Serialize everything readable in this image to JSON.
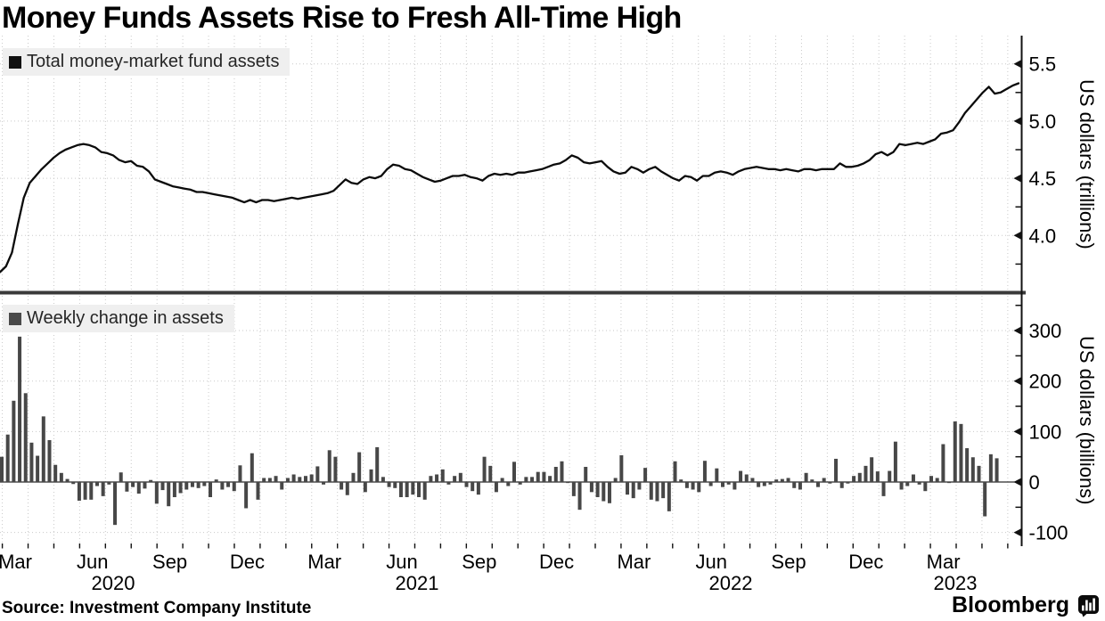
{
  "title": "Money Funds Assets Rise to Fresh All-Time High",
  "source": "Source: Investment Company Institute",
  "branding": {
    "name": "Bloomberg",
    "icon": "bloomberg-terminal-icon"
  },
  "colors": {
    "line": "#0b0b0b",
    "bar": "#474747",
    "grid": "#c9c9c9",
    "divider": "#3a3a3a",
    "axis": "#111111",
    "zero_line": "#2a2a2a",
    "legend_bg": "#efefef",
    "legend_square_top": "#111111",
    "legend_square_bottom": "#4a4a4a",
    "text": "#000000"
  },
  "x_axis": {
    "month_labels": [
      "Mar",
      "Jun",
      "Sep",
      "Dec",
      "Mar",
      "Jun",
      "Sep",
      "Dec",
      "Mar",
      "Jun",
      "Sep",
      "Dec",
      "Mar"
    ],
    "year_labels": [
      "2020",
      "2021",
      "2022",
      "2023"
    ],
    "range": "Feb 2020 - May 2023",
    "frequency": "weekly"
  },
  "chart_data": [
    {
      "type": "line",
      "legend": "Total money-market fund assets",
      "ylabel": "US dollars (trillions)",
      "unit": "USD trillions",
      "ylim": [
        3.51,
        5.71
      ],
      "yticks": [
        5.5,
        5.0,
        4.5,
        4.0
      ],
      "ytick_labels": [
        "5.5",
        "5.0",
        "4.5",
        "4.0"
      ],
      "minor_ticks": [
        5.75,
        5.25,
        4.75,
        4.25,
        3.75
      ],
      "grid": true,
      "legend_position": "top-left",
      "values": [
        3.68,
        3.73,
        3.85,
        4.1,
        4.33,
        4.46,
        4.52,
        4.58,
        4.63,
        4.68,
        4.72,
        4.75,
        4.77,
        4.79,
        4.8,
        4.79,
        4.77,
        4.73,
        4.72,
        4.7,
        4.66,
        4.64,
        4.65,
        4.61,
        4.6,
        4.56,
        4.49,
        4.47,
        4.45,
        4.43,
        4.42,
        4.41,
        4.4,
        4.38,
        4.38,
        4.37,
        4.36,
        4.35,
        4.34,
        4.33,
        4.31,
        4.29,
        4.31,
        4.29,
        4.31,
        4.31,
        4.3,
        4.31,
        4.32,
        4.33,
        4.32,
        4.33,
        4.34,
        4.35,
        4.36,
        4.37,
        4.39,
        4.44,
        4.49,
        4.46,
        4.45,
        4.49,
        4.51,
        4.5,
        4.52,
        4.58,
        4.62,
        4.61,
        4.58,
        4.57,
        4.54,
        4.51,
        4.49,
        4.47,
        4.48,
        4.5,
        4.52,
        4.52,
        4.53,
        4.51,
        4.5,
        4.48,
        4.52,
        4.54,
        4.53,
        4.54,
        4.53,
        4.55,
        4.55,
        4.56,
        4.57,
        4.58,
        4.6,
        4.62,
        4.63,
        4.66,
        4.7,
        4.68,
        4.64,
        4.63,
        4.64,
        4.65,
        4.6,
        4.56,
        4.54,
        4.55,
        4.6,
        4.58,
        4.55,
        4.58,
        4.6,
        4.56,
        4.53,
        4.5,
        4.48,
        4.52,
        4.51,
        4.48,
        4.52,
        4.52,
        4.55,
        4.56,
        4.55,
        4.53,
        4.56,
        4.58,
        4.59,
        4.6,
        4.59,
        4.58,
        4.58,
        4.57,
        4.58,
        4.57,
        4.56,
        4.58,
        4.58,
        4.57,
        4.58,
        4.58,
        4.58,
        4.63,
        4.6,
        4.6,
        4.61,
        4.63,
        4.66,
        4.71,
        4.73,
        4.7,
        4.73,
        4.8,
        4.79,
        4.8,
        4.81,
        4.8,
        4.82,
        4.84,
        4.89,
        4.9,
        4.92,
        4.99,
        5.07,
        5.13,
        5.19,
        5.25,
        5.3,
        5.24,
        5.25,
        5.28,
        5.31,
        5.33
      ]
    },
    {
      "type": "bar",
      "legend": "Weekly change in assets",
      "ylabel": "US dollars (billions)",
      "unit": "USD billions",
      "ylim": [
        -122,
        372
      ],
      "yticks": [
        300,
        200,
        100,
        0,
        -100
      ],
      "ytick_labels": [
        "300",
        "200",
        "100",
        "0",
        "-100"
      ],
      "minor_ticks": [
        350,
        250,
        150,
        50,
        -50
      ],
      "grid": true,
      "legend_position": "top-left",
      "values": [
        50,
        94,
        161,
        288,
        176,
        78,
        52,
        130,
        83,
        34,
        18,
        6,
        -4,
        -37,
        -35,
        -35,
        -8,
        -28,
        -5,
        -85,
        19,
        -19,
        -10,
        -23,
        -13,
        4,
        -43,
        -16,
        -48,
        -30,
        -22,
        -15,
        -10,
        -12,
        -8,
        -30,
        5,
        -15,
        -10,
        -18,
        33,
        -52,
        57,
        -35,
        8,
        8,
        12,
        -15,
        8,
        15,
        10,
        12,
        15,
        31,
        -5,
        63,
        50,
        -15,
        -26,
        18,
        59,
        -20,
        25,
        69,
        10,
        -10,
        -12,
        -30,
        -30,
        -25,
        -30,
        -35,
        12,
        15,
        25,
        -5,
        12,
        18,
        -10,
        -18,
        -25,
        50,
        32,
        -20,
        8,
        -8,
        40,
        -5,
        10,
        10,
        20,
        20,
        12,
        30,
        41,
        -2,
        -28,
        -55,
        30,
        -20,
        -30,
        -38,
        -42,
        8,
        53,
        -25,
        -32,
        -15,
        28,
        -35,
        -38,
        -32,
        -58,
        41,
        5,
        -12,
        -15,
        -20,
        42,
        -8,
        27,
        -10,
        -5,
        -15,
        22,
        15,
        8,
        -10,
        -8,
        -5,
        5,
        6,
        8,
        -12,
        -15,
        18,
        5,
        -10,
        8,
        -3,
        46,
        -12,
        -3,
        12,
        18,
        32,
        49,
        21,
        -28,
        22,
        80,
        -15,
        -8,
        15,
        -5,
        -18,
        12,
        8,
        75,
        -2,
        120,
        115,
        67,
        49,
        32,
        -68,
        55,
        47
      ]
    }
  ]
}
